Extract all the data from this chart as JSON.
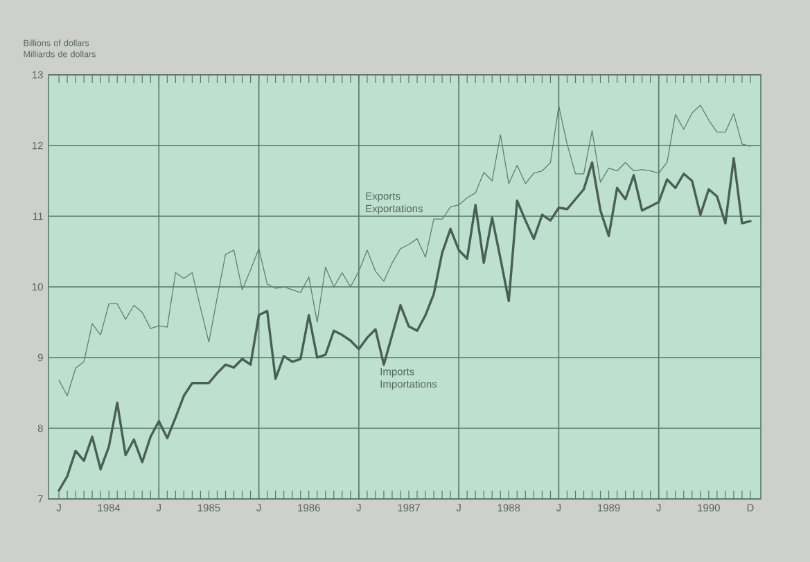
{
  "chart_data": {
    "type": "line",
    "ylabel": "Billions of dollars Milliards de dollars",
    "categories": [
      "J",
      null,
      null,
      null,
      null,
      null,
      "1984",
      null,
      null,
      null,
      null,
      null,
      "J",
      null,
      null,
      null,
      null,
      null,
      "1985",
      null,
      null,
      null,
      null,
      null,
      "J",
      null,
      null,
      null,
      null,
      null,
      "1986",
      null,
      null,
      null,
      null,
      null,
      "J",
      null,
      null,
      null,
      null,
      null,
      "1987",
      null,
      null,
      null,
      null,
      null,
      "J",
      null,
      null,
      null,
      null,
      null,
      "1988",
      null,
      null,
      null,
      null,
      null,
      "J",
      null,
      null,
      null,
      null,
      null,
      "1989",
      null,
      null,
      null,
      null,
      null,
      "J",
      null,
      null,
      null,
      null,
      null,
      "1990",
      null,
      null,
      null,
      null,
      "D"
    ],
    "series": [
      {
        "name": "Exports Exportations",
        "color": "#5f8070",
        "values": [
          8.68,
          8.46,
          8.85,
          8.94,
          9.48,
          9.32,
          9.76,
          9.76,
          9.54,
          9.74,
          9.64,
          9.41,
          9.45,
          9.43,
          10.2,
          10.12,
          10.2,
          9.7,
          9.22,
          9.85,
          10.46,
          10.52,
          9.96,
          10.24,
          10.54,
          10.04,
          9.98,
          10.0,
          9.96,
          9.92,
          10.14,
          9.5,
          10.28,
          10.0,
          10.2,
          10.0,
          10.22,
          10.52,
          10.22,
          10.08,
          10.34,
          10.54,
          10.6,
          10.68,
          10.42,
          10.96,
          10.96,
          11.13,
          11.16,
          11.26,
          11.33,
          11.62,
          11.5,
          12.15,
          11.46,
          11.72,
          11.46,
          11.61,
          11.64,
          11.76,
          12.56,
          12.02,
          11.6,
          11.6,
          12.21,
          11.48,
          11.68,
          11.64,
          11.76,
          11.64,
          11.66,
          11.64,
          11.61,
          11.76,
          12.44,
          12.23,
          12.46,
          12.57,
          12.36,
          12.19,
          12.19,
          12.45,
          12.02,
          11.99
        ]
      },
      {
        "name": "Imports Importations",
        "color": "#4a5f54",
        "values": [
          7.12,
          7.32,
          7.68,
          7.54,
          7.88,
          7.42,
          7.74,
          8.36,
          7.62,
          7.84,
          7.52,
          7.88,
          8.1,
          7.86,
          8.15,
          8.46,
          8.64,
          8.64,
          8.64,
          8.78,
          8.9,
          8.86,
          8.98,
          8.9,
          9.6,
          9.66,
          8.7,
          9.02,
          8.94,
          8.98,
          9.6,
          9.0,
          9.04,
          9.38,
          9.32,
          9.24,
          9.12,
          9.28,
          9.4,
          8.9,
          9.32,
          9.74,
          9.44,
          9.38,
          9.6,
          9.9,
          10.48,
          10.82,
          10.52,
          10.4,
          11.16,
          10.34,
          10.98,
          10.4,
          9.8,
          11.22,
          10.94,
          10.68,
          11.02,
          10.94,
          11.12,
          11.1,
          11.24,
          11.38,
          11.76,
          11.08,
          10.72,
          11.4,
          11.24,
          11.58,
          11.08,
          11.14,
          11.2,
          11.52,
          11.4,
          11.6,
          11.5,
          11.02,
          11.38,
          11.28,
          10.9,
          11.82,
          10.9,
          10.93
        ]
      }
    ],
    "ylim": [
      7,
      13
    ],
    "yticks": [
      7,
      8,
      9,
      10,
      11,
      12,
      13
    ],
    "grid": true,
    "marker": "none",
    "line_style": "solid"
  }
}
